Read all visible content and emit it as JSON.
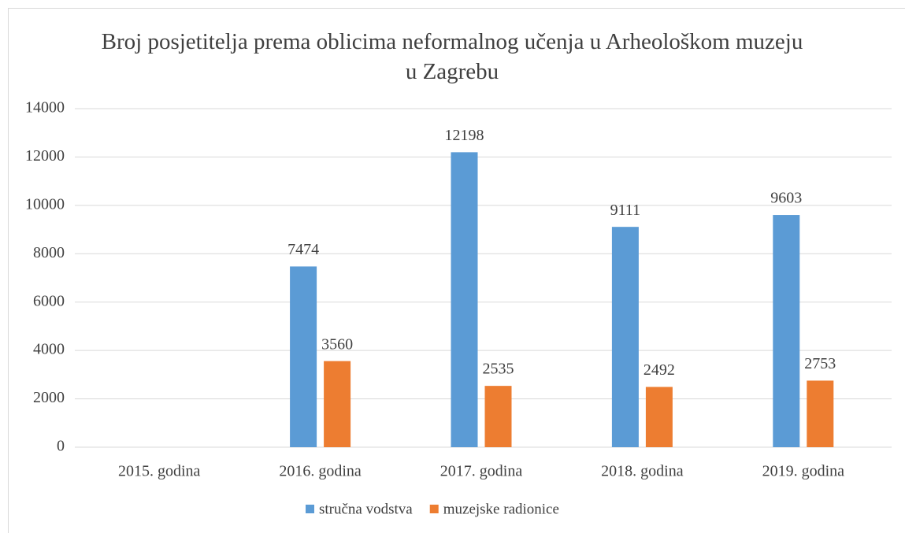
{
  "chart_data": {
    "type": "bar",
    "title": "Broj posjetitelja prema oblicima neformalnog učenja u Arheološkom muzeju u Zagrebu",
    "categories": [
      "2015. godina",
      "2016. godina",
      "2017. godina",
      "2018. godina",
      "2019. godina"
    ],
    "series": [
      {
        "name": "stručna vodstva",
        "color": "#5b9bd5",
        "values": [
          null,
          7474,
          12198,
          9111,
          9603
        ]
      },
      {
        "name": "muzejske radionice",
        "color": "#ed7d31",
        "values": [
          null,
          3560,
          2535,
          2492,
          2753
        ]
      }
    ],
    "ylim": [
      0,
      14000
    ],
    "yticks": [
      0,
      2000,
      4000,
      6000,
      8000,
      10000,
      12000,
      14000
    ],
    "grid": true,
    "legend": "bottom"
  }
}
